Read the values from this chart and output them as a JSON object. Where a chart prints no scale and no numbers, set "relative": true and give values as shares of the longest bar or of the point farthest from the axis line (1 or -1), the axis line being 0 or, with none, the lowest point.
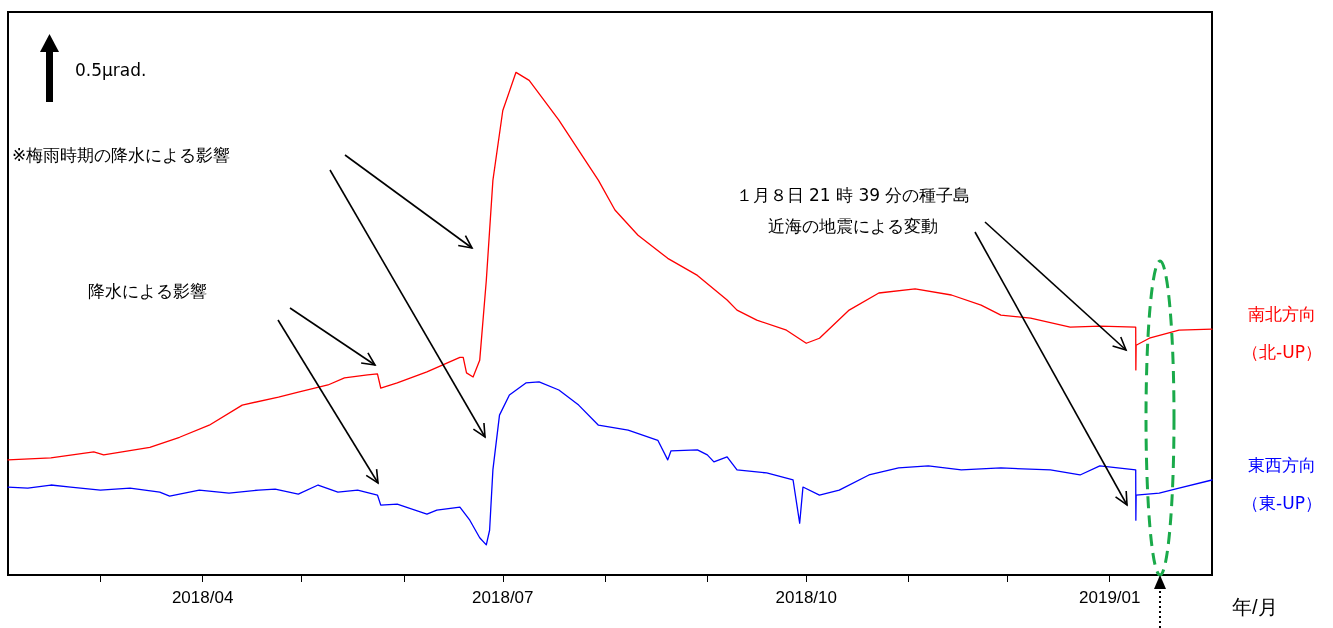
{
  "chart_data": {
    "type": "line",
    "xlabel": "年/月",
    "relative": true,
    "marker": "none",
    "line_style": "solid",
    "xlim": [
      "2018-02-01",
      "2019-02-01"
    ],
    "xticks": [
      {
        "value": "2018-03-01",
        "label": null
      },
      {
        "value": "2018-04-01",
        "label": "2018/04"
      },
      {
        "value": "2018-05-01",
        "label": null
      },
      {
        "value": "2018-06-01",
        "label": null
      },
      {
        "value": "2018-07-01",
        "label": "2018/07"
      },
      {
        "value": "2018-08-01",
        "label": null
      },
      {
        "value": "2018-09-01",
        "label": null
      },
      {
        "value": "2018-10-01",
        "label": "2018/10"
      },
      {
        "value": "2018-11-01",
        "label": null
      },
      {
        "value": "2018-12-01",
        "label": null
      },
      {
        "value": "2019-01-01",
        "label": "2019/01"
      }
    ],
    "annotations": [
      "0.5μrad.",
      "※梅雨時期の降水による影響",
      "降水による影響",
      "１月８日 21 時 39 分の種子島近海の地震による変動"
    ],
    "series": [
      {
        "name": "南北方向（北-UP）",
        "color": "#ff0000",
        "x": [
          "2018-02-01",
          "2018-02-14",
          "2018-02-27",
          "2018-03-02",
          "2018-03-16",
          "2018-03-25",
          "2018-04-03",
          "2018-04-13",
          "2018-04-24",
          "2018-04-30",
          "2018-05-09",
          "2018-05-14",
          "2018-05-21",
          "2018-05-24",
          "2018-05-25",
          "2018-05-30",
          "2018-06-08",
          "2018-06-18",
          "2018-06-19",
          "2018-06-20",
          "2018-06-22",
          "2018-06-24",
          "2018-06-26",
          "2018-06-28",
          "2018-07-01",
          "2018-07-05",
          "2018-07-09",
          "2018-07-18",
          "2018-07-27",
          "2018-07-30",
          "2018-08-04",
          "2018-08-11",
          "2018-08-20",
          "2018-08-29",
          "2018-09-07",
          "2018-09-10",
          "2018-09-16",
          "2018-09-25",
          "2018-10-01",
          "2018-10-05",
          "2018-10-14",
          "2018-10-23",
          "2018-11-03",
          "2018-11-14",
          "2018-11-23",
          "2018-11-29",
          "2018-12-08",
          "2018-12-20",
          "2018-12-29",
          "2019-01-08T21:00",
          "2019-01-08T22:00",
          "2019-01-09",
          "2019-01-13",
          "2019-01-22",
          "2019-02-01"
        ],
        "values": [
          0.229,
          0.233,
          0.245,
          0.239,
          0.254,
          0.274,
          0.298,
          0.338,
          0.354,
          0.364,
          0.378,
          0.392,
          0.398,
          0.4,
          0.372,
          0.382,
          0.404,
          0.433,
          0.433,
          0.402,
          0.394,
          0.427,
          0.586,
          0.785,
          0.924,
          1,
          0.984,
          0.905,
          0.815,
          0.785,
          0.726,
          0.676,
          0.63,
          0.596,
          0.547,
          0.527,
          0.507,
          0.487,
          0.461,
          0.471,
          0.527,
          0.561,
          0.569,
          0.557,
          0.537,
          0.517,
          0.511,
          0.493,
          0.495,
          0.493,
          0.408,
          0.457,
          0.471,
          0.487,
          0.489
        ]
      },
      {
        "name": "東西方向（東-UP）",
        "color": "#0000ff",
        "x": [
          "2018-02-01",
          "2018-02-07",
          "2018-02-14",
          "2018-02-20",
          "2018-02-26",
          "2018-03-01",
          "2018-03-10",
          "2018-03-19",
          "2018-03-22",
          "2018-03-31",
          "2018-04-09",
          "2018-04-18",
          "2018-04-23",
          "2018-04-30",
          "2018-05-06",
          "2018-05-12",
          "2018-05-18",
          "2018-05-24",
          "2018-05-25",
          "2018-05-30",
          "2018-06-08",
          "2018-06-11",
          "2018-06-18",
          "2018-06-21",
          "2018-06-24",
          "2018-06-26",
          "2018-06-27",
          "2018-06-28",
          "2018-06-30",
          "2018-07-03",
          "2018-07-08",
          "2018-07-12",
          "2018-07-18",
          "2018-07-24",
          "2018-07-30",
          "2018-08-08",
          "2018-08-17",
          "2018-08-20",
          "2018-08-21",
          "2018-08-29",
          "2018-09-01",
          "2018-09-03",
          "2018-09-07",
          "2018-09-10",
          "2018-09-19",
          "2018-09-27",
          "2018-09-29",
          "2018-09-30",
          "2018-10-05",
          "2018-10-11",
          "2018-10-20",
          "2018-10-29",
          "2018-11-07",
          "2018-11-17",
          "2018-11-29",
          "2018-12-14",
          "2018-12-23",
          "2018-12-29",
          "2019-01-08T21:00",
          "2019-01-08T22:00",
          "2019-01-09",
          "2019-01-16",
          "2019-01-22",
          "2019-02-01"
        ],
        "values": [
          0.175,
          0.173,
          0.179,
          0.175,
          0.171,
          0.169,
          0.173,
          0.165,
          0.157,
          0.169,
          0.163,
          0.169,
          0.171,
          0.161,
          0.179,
          0.165,
          0.169,
          0.159,
          0.139,
          0.141,
          0.121,
          0.129,
          0.135,
          0.109,
          0.074,
          0.06,
          0.089,
          0.209,
          0.318,
          0.358,
          0.382,
          0.384,
          0.368,
          0.338,
          0.298,
          0.288,
          0.268,
          0.229,
          0.247,
          0.249,
          0.239,
          0.225,
          0.235,
          0.209,
          0.203,
          0.189,
          0.103,
          0.175,
          0.159,
          0.169,
          0.199,
          0.213,
          0.217,
          0.209,
          0.213,
          0.209,
          0.199,
          0.217,
          0.209,
          0.109,
          0.159,
          0.163,
          0.173,
          0.189
        ]
      }
    ]
  }
}
